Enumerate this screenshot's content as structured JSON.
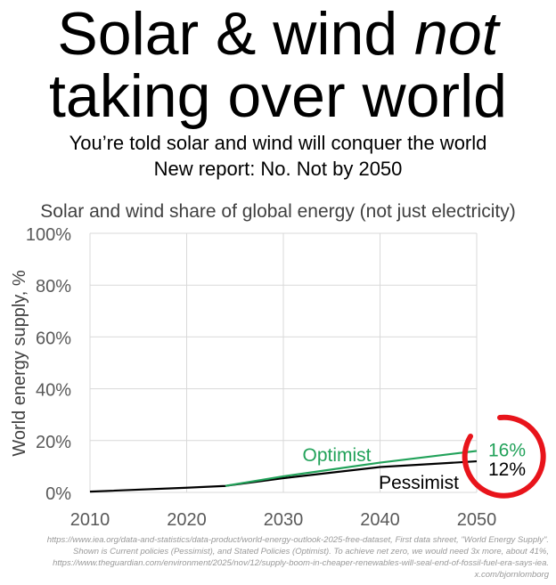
{
  "title_line1": "Solar & wind not",
  "title_line1_pre": "Solar & wind ",
  "title_line1_em": "not",
  "title_line2": "taking over world",
  "subtitle1": "You’re told solar and wind will conquer the world",
  "subtitle2": "New report: No. Not by 2050",
  "footer": [
    "https://www.iea.org/data-and-statistics/data-product/world-energy-outlook-2025-free-dataset, First data shreet, \"World Energy Supply\".",
    "Shown is Current policies (Pessimist), and Stated Policies (Optimist). To achieve net zero, we would need 3x more, about 41%,",
    "https://www.theguardian.com/environment/2025/nov/12/supply-boom-in-cheaper-renewables-will-seal-end-of-fossil-fuel-era-says-iea.",
    "x.com/bjornlomborg"
  ],
  "chart_data": {
    "type": "line",
    "title": "Solar and wind share of global energy (not just electricity)",
    "xlabel": "",
    "ylabel": "World energy supply, %",
    "xlim": [
      2010,
      2050
    ],
    "ylim": [
      0,
      100
    ],
    "xticks": [
      "2010",
      "2020",
      "2030",
      "2040",
      "2050"
    ],
    "yticks": [
      "0%",
      "20%",
      "40%",
      "60%",
      "80%",
      "100%"
    ],
    "grid": true,
    "series": [
      {
        "name": "Optimist",
        "color": "#22a25a",
        "x": [
          2024,
          2030,
          2040,
          2050
        ],
        "y": [
          2.5,
          6.2,
          11.5,
          16
        ],
        "end_label": "16%"
      },
      {
        "name": "Pessimist",
        "color": "#000000",
        "x": [
          2010,
          2020,
          2024,
          2030,
          2040,
          2050
        ],
        "y": [
          0.3,
          1.8,
          2.5,
          5.5,
          9.8,
          12
        ],
        "end_label": "12%"
      }
    ],
    "annotation_color": "#e8141b"
  }
}
